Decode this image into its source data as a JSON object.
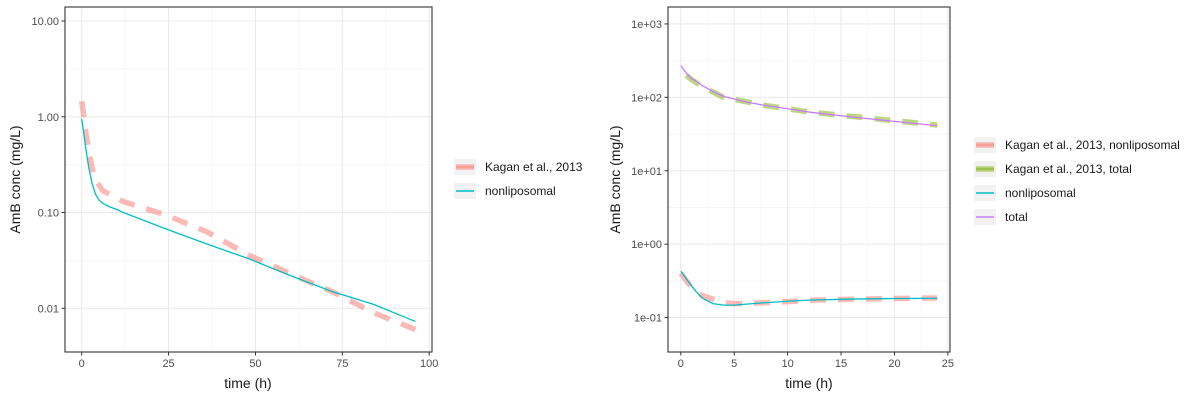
{
  "chart_data": [
    {
      "type": "line",
      "xlabel": "time (h)",
      "ylabel": "AmB conc (mg/L)",
      "xlim": [
        -4.8,
        100.8
      ],
      "xticks": [
        0,
        25,
        50,
        75,
        100
      ],
      "xtick_labels": [
        "0",
        "25",
        "50",
        "75",
        "100"
      ],
      "y_scale": "log10",
      "ylim": [
        0.0035,
        14
      ],
      "yticks": [
        0.01,
        0.1,
        1,
        10
      ],
      "ytick_labels": [
        "0.01",
        "0.10",
        "1.00",
        "10.00"
      ],
      "grid": true,
      "legend_position": "right",
      "series": [
        {
          "name": "Kagan et al., 2013",
          "style": "dashed",
          "color": "#F8766D",
          "x": [
            0,
            0.5,
            1,
            2,
            3,
            4,
            6,
            8,
            12,
            24,
            36,
            48,
            60,
            72,
            84,
            96
          ],
          "y": [
            1.45,
            1.1,
            0.75,
            0.45,
            0.29,
            0.22,
            0.17,
            0.155,
            0.13,
            0.095,
            0.063,
            0.036,
            0.023,
            0.015,
            0.009,
            0.006
          ]
        },
        {
          "name": "nonliposomal",
          "style": "solid",
          "color": "#00BFC4",
          "x": [
            0,
            0.5,
            1,
            2,
            3,
            4,
            5,
            6,
            8,
            10,
            12,
            24,
            36,
            48,
            60,
            72,
            84,
            96
          ],
          "y": [
            0.95,
            0.72,
            0.52,
            0.3,
            0.2,
            0.155,
            0.135,
            0.125,
            0.115,
            0.108,
            0.1,
            0.068,
            0.047,
            0.033,
            0.022,
            0.015,
            0.011,
            0.0073
          ]
        }
      ]
    },
    {
      "type": "line",
      "xlabel": "time (h)",
      "ylabel": "AmB conc (mg/L)",
      "xlim": [
        -1.2,
        25.2
      ],
      "xticks": [
        0,
        5,
        10,
        15,
        20,
        25
      ],
      "xtick_labels": [
        "0",
        "5",
        "10",
        "15",
        "20",
        "25"
      ],
      "y_scale": "log10",
      "ylim": [
        0.034,
        1700
      ],
      "yticks": [
        0.1,
        1,
        10,
        100,
        1000
      ],
      "ytick_labels": [
        "1e-01",
        "1e+00",
        "1e+01",
        "1e+02",
        "1e+03"
      ],
      "grid": true,
      "legend_position": "right",
      "series": [
        {
          "name": "Kagan et al., 2013, nonliposomal",
          "style": "dashed",
          "color": "#F8766D",
          "x": [
            0,
            0.5,
            1,
            2,
            4,
            5,
            6,
            8,
            10,
            12,
            16,
            20,
            24
          ],
          "y": [
            0.4,
            0.32,
            0.26,
            0.2,
            0.16,
            0.155,
            0.155,
            0.16,
            0.165,
            0.172,
            0.178,
            0.182,
            0.185
          ]
        },
        {
          "name": "Kagan et al., 2013, total",
          "style": "dashed",
          "color": "#7CAE00",
          "x": [
            0.5,
            1,
            2,
            4,
            6,
            8,
            10,
            12,
            16,
            20,
            24
          ],
          "y": [
            200,
            175,
            140,
            100,
            88,
            77,
            70,
            63,
            55,
            48,
            42
          ]
        },
        {
          "name": "nonliposomal",
          "style": "solid",
          "color": "#00BFC4",
          "x": [
            0,
            0.5,
            1,
            1.5,
            2,
            3,
            4,
            5,
            6,
            8,
            10,
            12,
            16,
            20,
            24
          ],
          "y": [
            0.43,
            0.34,
            0.27,
            0.22,
            0.185,
            0.155,
            0.148,
            0.148,
            0.152,
            0.16,
            0.167,
            0.173,
            0.179,
            0.182,
            0.183
          ]
        },
        {
          "name": "total",
          "style": "solid",
          "color": "#C77CFF",
          "x": [
            0,
            0.5,
            1,
            2,
            3,
            4,
            6,
            8,
            10,
            12,
            16,
            20,
            24
          ],
          "y": [
            270,
            215,
            180,
            145,
            120,
            103,
            87,
            77,
            70,
            63,
            54,
            47,
            41
          ]
        }
      ]
    }
  ]
}
